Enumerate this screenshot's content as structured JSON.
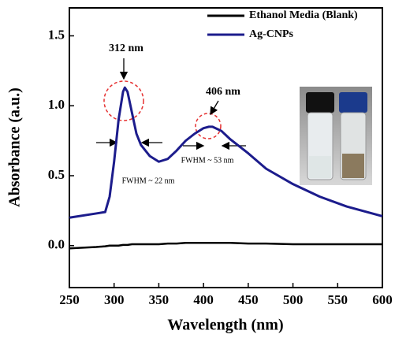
{
  "chart_data": {
    "type": "line",
    "xlabel": "Wavelength (nm)",
    "ylabel": "Absorbance (a.u.)",
    "x": [
      250,
      280,
      290,
      295,
      300,
      305,
      310,
      312,
      315,
      320,
      325,
      330,
      340,
      350,
      360,
      370,
      380,
      390,
      400,
      406,
      410,
      420,
      430,
      450,
      470,
      500,
      530,
      560,
      600
    ],
    "series": [
      {
        "name": "Ethanol Media (Blank)",
        "color": "#000000",
        "values": [
          -0.02,
          -0.01,
          -0.005,
          0,
          0,
          0,
          0.005,
          0.005,
          0.005,
          0.01,
          0.01,
          0.01,
          0.01,
          0.01,
          0.015,
          0.015,
          0.02,
          0.02,
          0.02,
          0.02,
          0.02,
          0.02,
          0.02,
          0.015,
          0.015,
          0.01,
          0.01,
          0.01,
          0.01
        ]
      },
      {
        "name": "Ag-CNPs",
        "color": "#1c1c8c",
        "values": [
          0.2,
          0.23,
          0.24,
          0.35,
          0.6,
          0.9,
          1.1,
          1.13,
          1.1,
          0.95,
          0.8,
          0.72,
          0.64,
          0.6,
          0.62,
          0.68,
          0.75,
          0.8,
          0.84,
          0.85,
          0.85,
          0.82,
          0.76,
          0.66,
          0.55,
          0.44,
          0.35,
          0.28,
          0.21
        ]
      }
    ],
    "xlim": [
      250,
      600
    ],
    "xticks": [
      250,
      300,
      350,
      400,
      450,
      500,
      550,
      600
    ],
    "ylim": [
      -0.3,
      1.7
    ],
    "yticks": [
      {
        "value": 0,
        "label": "0.0"
      },
      0.5,
      {
        "value": 1,
        "label": "1.0"
      },
      1.5
    ],
    "annotations": [
      "312 nm",
      "406 nm",
      "FWHM ~ 22 nm",
      "FWHM ~ 53 nm"
    ],
    "legend": "upper right"
  }
}
